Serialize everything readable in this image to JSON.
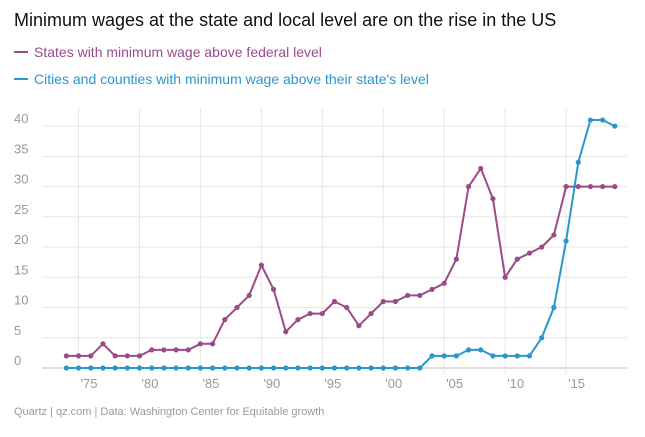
{
  "header": {
    "title": "Minimum wages at the state and local level are on the rise in the US"
  },
  "legend": [
    {
      "label": "States with minimum wage above federal level",
      "color": "#9b4a8a"
    },
    {
      "label": "Cities and counties with minimum wage above their state's level",
      "color": "#2a97cc"
    }
  ],
  "footer": {
    "source": "Quartz | qz.com | Data: Washington Center for Equitable growth"
  },
  "chart_data": {
    "type": "line",
    "title": "Minimum wages at the state and local level are on the rise in the US",
    "xlabel": "",
    "ylabel": "",
    "xlim": [
      1972,
      2020
    ],
    "ylim": [
      0,
      42
    ],
    "grid": true,
    "legend_position": "top-left",
    "x_ticks": [
      {
        "value": 1975,
        "label": "'75"
      },
      {
        "value": 1980,
        "label": "'80"
      },
      {
        "value": 1985,
        "label": "'85"
      },
      {
        "value": 1990,
        "label": "'90"
      },
      {
        "value": 1995,
        "label": "'95"
      },
      {
        "value": 2000,
        "label": "'00"
      },
      {
        "value": 2005,
        "label": "'05"
      },
      {
        "value": 2010,
        "label": "'10"
      },
      {
        "value": 2015,
        "label": "'15"
      }
    ],
    "y_ticks": [
      {
        "value": 0,
        "label": "0"
      },
      {
        "value": 5,
        "label": "5"
      },
      {
        "value": 10,
        "label": "10"
      },
      {
        "value": 15,
        "label": "15"
      },
      {
        "value": 20,
        "label": "20"
      },
      {
        "value": 25,
        "label": "25"
      },
      {
        "value": 30,
        "label": "30"
      },
      {
        "value": 35,
        "label": "35"
      },
      {
        "value": 40,
        "label": "40"
      }
    ],
    "x": [
      1974,
      1975,
      1976,
      1977,
      1978,
      1979,
      1980,
      1981,
      1982,
      1983,
      1984,
      1985,
      1986,
      1987,
      1988,
      1989,
      1990,
      1991,
      1992,
      1993,
      1994,
      1995,
      1996,
      1997,
      1998,
      1999,
      2000,
      2001,
      2002,
      2003,
      2004,
      2005,
      2006,
      2007,
      2008,
      2009,
      2010,
      2011,
      2012,
      2013,
      2014,
      2015,
      2016,
      2017,
      2018,
      2019
    ],
    "series": [
      {
        "name": "States with minimum wage above federal level",
        "color": "#9b4a8a",
        "values": [
          2,
          2,
          2,
          4,
          2,
          2,
          2,
          3,
          3,
          3,
          3,
          4,
          4,
          8,
          10,
          12,
          17,
          13,
          6,
          8,
          9,
          9,
          11,
          10,
          7,
          9,
          11,
          11,
          12,
          12,
          13,
          14,
          18,
          30,
          33,
          28,
          15,
          18,
          19,
          20,
          22,
          30,
          30,
          30,
          30,
          30
        ]
      },
      {
        "name": "Cities and counties with minimum wage above their state's level",
        "color": "#2a97cc",
        "values": [
          0,
          0,
          0,
          0,
          0,
          0,
          0,
          0,
          0,
          0,
          0,
          0,
          0,
          0,
          0,
          0,
          0,
          0,
          0,
          0,
          0,
          0,
          0,
          0,
          0,
          0,
          0,
          0,
          0,
          0,
          2,
          2,
          2,
          3,
          3,
          2,
          2,
          2,
          2,
          5,
          10,
          21,
          34,
          41,
          41,
          40
        ]
      }
    ]
  }
}
